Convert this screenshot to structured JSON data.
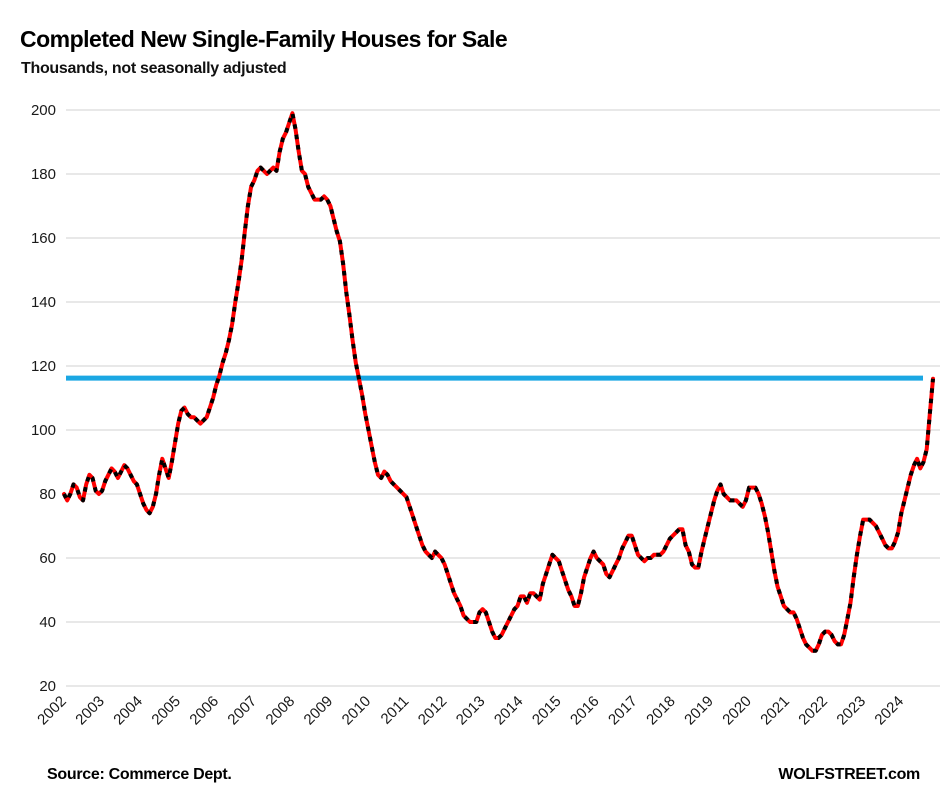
{
  "header": {
    "title": "Completed New Single-Family Houses for Sale",
    "subtitle": "Thousands, not seasonally adjusted"
  },
  "footer": {
    "source": "Source: Commerce Dept.",
    "branding": "WOLFSTREET.com"
  },
  "chart_data": {
    "type": "line",
    "title": "Completed New Single-Family Houses for Sale",
    "subtitle": "Thousands, not seasonally adjusted",
    "units": "thousands of houses",
    "frequency": "monthly",
    "start": "2002-01",
    "end": "2024-11",
    "grid": "horizontal only",
    "legend_position": "none",
    "y_axis": {
      "min": 20,
      "max": 200,
      "ticks": [
        20,
        40,
        60,
        80,
        100,
        120,
        140,
        160,
        180,
        200
      ]
    },
    "x_axis": {
      "years": [
        2002,
        2003,
        2004,
        2005,
        2006,
        2007,
        2008,
        2009,
        2010,
        2011,
        2012,
        2013,
        2014,
        2015,
        2016,
        2017,
        2018,
        2019,
        2020,
        2021,
        2022,
        2023,
        2024
      ]
    },
    "reference_line": {
      "value": 116.2,
      "color": "#1BA7E3",
      "meaning": "latest level"
    },
    "series": [
      {
        "name": "Completed new single-family houses for sale",
        "line_color": "#FF0000",
        "dash_overlay_color": "#000000",
        "values": [
          80,
          78,
          80,
          83,
          82,
          79,
          78,
          83,
          86,
          85,
          81,
          80,
          81,
          84,
          86,
          88,
          87,
          85,
          87,
          89,
          88,
          86,
          84,
          83,
          80,
          77,
          75,
          74,
          76,
          80,
          86,
          91,
          88,
          85,
          90,
          96,
          102,
          106,
          107,
          105,
          104,
          104,
          103,
          102,
          103,
          104,
          107,
          110,
          114,
          117,
          121,
          124,
          128,
          133,
          140,
          146,
          153,
          162,
          170,
          176,
          178,
          181,
          182,
          181,
          180,
          181,
          182,
          181,
          187,
          191,
          193,
          196,
          199,
          194,
          187,
          181,
          180,
          176,
          174,
          172,
          172,
          172,
          173,
          172,
          170,
          166,
          162,
          159,
          152,
          143,
          136,
          128,
          121,
          116,
          111,
          105,
          100,
          95,
          90,
          86,
          85,
          87,
          86,
          84,
          83,
          82,
          81,
          80,
          79,
          76,
          73,
          70,
          67,
          64,
          62,
          61,
          60,
          62,
          61,
          60,
          58,
          55,
          52,
          49,
          47,
          45,
          42,
          41,
          40,
          40,
          40,
          43,
          44,
          43,
          40,
          37,
          35,
          35,
          36,
          38,
          40,
          42,
          44,
          45,
          48,
          48,
          46,
          49,
          49,
          48,
          47,
          52,
          55,
          58,
          61,
          60,
          59,
          56,
          53,
          50,
          48,
          45,
          45,
          49,
          54,
          57,
          60,
          62,
          60,
          59,
          58,
          55,
          54,
          56,
          58,
          60,
          63,
          65,
          67,
          67,
          64,
          61,
          60,
          59,
          60,
          60,
          61,
          61,
          61,
          62,
          64,
          66,
          67,
          68,
          69,
          69,
          64,
          62,
          58,
          57,
          57,
          62,
          66,
          70,
          74,
          78,
          81,
          83,
          80,
          79,
          78,
          78,
          78,
          77,
          76,
          78,
          82,
          82,
          82,
          80,
          77,
          73,
          68,
          62,
          56,
          51,
          48,
          45,
          44,
          43,
          43,
          41,
          38,
          35,
          33,
          32,
          31,
          31,
          33,
          36,
          37,
          37,
          36,
          34,
          33,
          33,
          36,
          41,
          46,
          54,
          61,
          67,
          72,
          72,
          72,
          71,
          70,
          68,
          66,
          64,
          63,
          63,
          65,
          68,
          74,
          78,
          82,
          86,
          89,
          91,
          88,
          90,
          94,
          105,
          116
        ]
      }
    ]
  }
}
